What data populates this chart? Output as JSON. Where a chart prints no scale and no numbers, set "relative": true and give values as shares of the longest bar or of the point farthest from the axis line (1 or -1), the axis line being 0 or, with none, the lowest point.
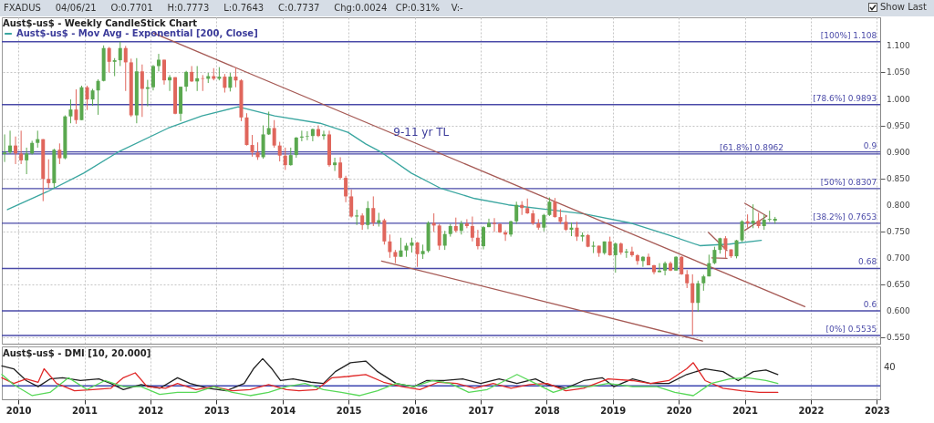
{
  "chart_data": [
    {
      "type": "candlestick",
      "title": "Aust$-us$ - Weekly CandleStick Chart",
      "subtitle": "FXADUS     04/06/21     O:0.7701     H:0.7773     L:0.7643     C:0.7737     Chg:0.0024   CP:0.31%    V:-",
      "x": [
        2009.792,
        2009.875,
        2009.958,
        2010.042,
        2010.125,
        2010.208,
        2010.292,
        2010.375,
        2010.458,
        2010.542,
        2010.625,
        2010.708,
        2010.792,
        2010.875,
        2010.958,
        2011.042,
        2011.125,
        2011.208,
        2011.292,
        2011.375,
        2011.458,
        2011.542,
        2011.625,
        2011.708,
        2011.792,
        2011.875,
        2011.958,
        2012.042,
        2012.125,
        2012.208,
        2012.292,
        2012.375,
        2012.458,
        2012.542,
        2012.625,
        2012.708,
        2012.792,
        2012.875,
        2012.958,
        2013.042,
        2013.125,
        2013.208,
        2013.292,
        2013.375,
        2013.458,
        2013.542,
        2013.625,
        2013.708,
        2013.792,
        2013.875,
        2013.958,
        2014.042,
        2014.125,
        2014.208,
        2014.292,
        2014.375,
        2014.458,
        2014.542,
        2014.625,
        2014.708,
        2014.792,
        2014.875,
        2014.958,
        2015.042,
        2015.125,
        2015.208,
        2015.292,
        2015.375,
        2015.458,
        2015.542,
        2015.625,
        2015.708,
        2015.792,
        2015.875,
        2015.958,
        2016.042,
        2016.125,
        2016.208,
        2016.292,
        2016.375,
        2016.458,
        2016.542,
        2016.625,
        2016.708,
        2016.792,
        2016.875,
        2016.958,
        2017.042,
        2017.125,
        2017.208,
        2017.292,
        2017.375,
        2017.458,
        2017.542,
        2017.625,
        2017.708,
        2017.792,
        2017.875,
        2017.958,
        2018.042,
        2018.125,
        2018.208,
        2018.292,
        2018.375,
        2018.458,
        2018.542,
        2018.625,
        2018.708,
        2018.792,
        2018.875,
        2018.958,
        2019.042,
        2019.125,
        2019.208,
        2019.292,
        2019.375,
        2019.458,
        2019.542,
        2019.625,
        2019.708,
        2019.792,
        2019.875,
        2019.958,
        2020.042,
        2020.125,
        2020.208,
        2020.292,
        2020.375,
        2020.458,
        2020.542,
        2020.625,
        2020.708,
        2020.792,
        2020.875,
        2020.958,
        2021.042,
        2021.125,
        2021.208,
        2021.292,
        2021.375,
        2021.458
      ],
      "ohlc": [
        [
          0.896,
          0.933,
          0.881,
          0.899
        ],
        [
          0.899,
          0.94,
          0.896,
          0.912
        ],
        [
          0.912,
          0.929,
          0.877,
          0.897
        ],
        [
          0.897,
          0.94,
          0.877,
          0.884
        ],
        [
          0.884,
          0.908,
          0.858,
          0.897
        ],
        [
          0.897,
          0.921,
          0.895,
          0.917
        ],
        [
          0.917,
          0.94,
          0.908,
          0.924
        ],
        [
          0.924,
          0.924,
          0.807,
          0.849
        ],
        [
          0.849,
          0.886,
          0.832,
          0.841
        ],
        [
          0.841,
          0.906,
          0.832,
          0.904
        ],
        [
          0.904,
          0.916,
          0.877,
          0.888
        ],
        [
          0.888,
          0.969,
          0.886,
          0.967
        ],
        [
          0.967,
          0.999,
          0.954,
          0.98
        ],
        [
          0.98,
          1.018,
          0.953,
          0.96
        ],
        [
          0.96,
          1.025,
          0.96,
          1.022
        ],
        [
          1.022,
          1.025,
          0.979,
          0.999
        ],
        [
          0.999,
          1.019,
          0.987,
          1.016
        ],
        [
          1.016,
          1.037,
          0.97,
          1.034
        ],
        [
          1.034,
          1.101,
          1.033,
          1.096
        ],
        [
          1.096,
          1.098,
          1.05,
          1.07
        ],
        [
          1.07,
          1.077,
          1.043,
          1.073
        ],
        [
          1.073,
          1.108,
          1.062,
          1.096
        ],
        [
          1.096,
          1.1,
          1.015,
          1.069
        ],
        [
          1.069,
          1.076,
          0.966,
          0.969
        ],
        [
          0.969,
          1.077,
          0.954,
          1.052
        ],
        [
          1.052,
          1.065,
          0.966,
          1.019
        ],
        [
          1.019,
          1.036,
          0.986,
          1.022
        ],
        [
          1.022,
          1.064,
          1.016,
          1.062
        ],
        [
          1.062,
          1.085,
          1.052,
          1.074
        ],
        [
          1.074,
          1.074,
          1.027,
          1.035
        ],
        [
          1.035,
          1.045,
          1.015,
          1.041
        ],
        [
          1.041,
          1.041,
          0.971,
          0.972
        ],
        [
          0.972,
          1.023,
          0.958,
          1.023
        ],
        [
          1.023,
          1.053,
          1.014,
          1.051
        ],
        [
          1.051,
          1.062,
          1.032,
          1.033
        ],
        [
          1.033,
          1.062,
          1.015,
          1.039
        ],
        [
          1.039,
          1.045,
          1.015,
          1.038
        ],
        [
          1.038,
          1.049,
          1.03,
          1.043
        ],
        [
          1.043,
          1.058,
          1.035,
          1.038
        ],
        [
          1.038,
          1.06,
          1.035,
          1.042
        ],
        [
          1.042,
          1.047,
          1.012,
          1.021
        ],
        [
          1.021,
          1.049,
          1.014,
          1.042
        ],
        [
          1.042,
          1.059,
          1.022,
          1.035
        ],
        [
          1.035,
          1.037,
          0.958,
          0.965
        ],
        [
          0.965,
          0.973,
          0.912,
          0.913
        ],
        [
          0.913,
          0.932,
          0.891,
          0.899
        ],
        [
          0.899,
          0.918,
          0.885,
          0.89
        ],
        [
          0.89,
          0.95,
          0.887,
          0.933
        ],
        [
          0.933,
          0.976,
          0.932,
          0.945
        ],
        [
          0.945,
          0.96,
          0.908,
          0.912
        ],
        [
          0.912,
          0.919,
          0.882,
          0.893
        ],
        [
          0.893,
          0.908,
          0.866,
          0.875
        ],
        [
          0.875,
          0.908,
          0.874,
          0.894
        ],
        [
          0.894,
          0.928,
          0.889,
          0.927
        ],
        [
          0.927,
          0.94,
          0.92,
          0.929
        ],
        [
          0.929,
          0.939,
          0.922,
          0.93
        ],
        [
          0.93,
          0.944,
          0.92,
          0.943
        ],
        [
          0.943,
          0.95,
          0.928,
          0.93
        ],
        [
          0.93,
          0.94,
          0.923,
          0.933
        ],
        [
          0.933,
          0.94,
          0.872,
          0.875
        ],
        [
          0.875,
          0.889,
          0.864,
          0.88
        ],
        [
          0.88,
          0.89,
          0.848,
          0.851
        ],
        [
          0.851,
          0.855,
          0.805,
          0.816
        ],
        [
          0.816,
          0.829,
          0.776,
          0.778
        ],
        [
          0.778,
          0.791,
          0.762,
          0.78
        ],
        [
          0.78,
          0.784,
          0.753,
          0.762
        ],
        [
          0.762,
          0.807,
          0.754,
          0.794
        ],
        [
          0.794,
          0.816,
          0.76,
          0.766
        ],
        [
          0.766,
          0.785,
          0.759,
          0.771
        ],
        [
          0.771,
          0.774,
          0.725,
          0.731
        ],
        [
          0.731,
          0.744,
          0.7,
          0.711
        ],
        [
          0.711,
          0.715,
          0.69,
          0.702
        ],
        [
          0.702,
          0.738,
          0.702,
          0.714
        ],
        [
          0.714,
          0.728,
          0.702,
          0.723
        ],
        [
          0.723,
          0.738,
          0.71,
          0.729
        ],
        [
          0.729,
          0.73,
          0.683,
          0.707
        ],
        [
          0.707,
          0.725,
          0.698,
          0.713
        ],
        [
          0.713,
          0.769,
          0.71,
          0.766
        ],
        [
          0.766,
          0.784,
          0.749,
          0.761
        ],
        [
          0.761,
          0.764,
          0.715,
          0.723
        ],
        [
          0.723,
          0.751,
          0.715,
          0.745
        ],
        [
          0.745,
          0.764,
          0.74,
          0.76
        ],
        [
          0.76,
          0.776,
          0.748,
          0.751
        ],
        [
          0.751,
          0.77,
          0.744,
          0.765
        ],
        [
          0.765,
          0.773,
          0.756,
          0.76
        ],
        [
          0.76,
          0.778,
          0.731,
          0.738
        ],
        [
          0.738,
          0.753,
          0.716,
          0.722
        ],
        [
          0.722,
          0.76,
          0.716,
          0.758
        ],
        [
          0.758,
          0.774,
          0.758,
          0.766
        ],
        [
          0.766,
          0.775,
          0.749,
          0.764
        ],
        [
          0.764,
          0.765,
          0.747,
          0.748
        ],
        [
          0.748,
          0.752,
          0.732,
          0.744
        ],
        [
          0.744,
          0.77,
          0.74,
          0.769
        ],
        [
          0.769,
          0.806,
          0.764,
          0.8
        ],
        [
          0.8,
          0.807,
          0.781,
          0.794
        ],
        [
          0.794,
          0.812,
          0.783,
          0.784
        ],
        [
          0.784,
          0.79,
          0.762,
          0.765
        ],
        [
          0.765,
          0.773,
          0.753,
          0.757
        ],
        [
          0.757,
          0.783,
          0.75,
          0.781
        ],
        [
          0.781,
          0.814,
          0.779,
          0.806
        ],
        [
          0.806,
          0.813,
          0.776,
          0.777
        ],
        [
          0.777,
          0.792,
          0.764,
          0.768
        ],
        [
          0.768,
          0.781,
          0.751,
          0.753
        ],
        [
          0.753,
          0.767,
          0.741,
          0.757
        ],
        [
          0.757,
          0.768,
          0.732,
          0.74
        ],
        [
          0.74,
          0.748,
          0.731,
          0.743
        ],
        [
          0.743,
          0.745,
          0.72,
          0.721
        ],
        [
          0.721,
          0.731,
          0.709,
          0.723
        ],
        [
          0.723,
          0.723,
          0.702,
          0.709
        ],
        [
          0.709,
          0.731,
          0.706,
          0.731
        ],
        [
          0.731,
          0.74,
          0.704,
          0.705
        ],
        [
          0.705,
          0.729,
          0.672,
          0.727
        ],
        [
          0.727,
          0.729,
          0.706,
          0.71
        ],
        [
          0.71,
          0.717,
          0.7,
          0.712
        ],
        [
          0.712,
          0.721,
          0.702,
          0.705
        ],
        [
          0.705,
          0.707,
          0.687,
          0.694
        ],
        [
          0.694,
          0.703,
          0.683,
          0.702
        ],
        [
          0.702,
          0.708,
          0.686,
          0.686
        ],
        [
          0.686,
          0.687,
          0.669,
          0.673
        ],
        [
          0.673,
          0.69,
          0.673,
          0.676
        ],
        [
          0.676,
          0.693,
          0.667,
          0.69
        ],
        [
          0.69,
          0.693,
          0.675,
          0.676
        ],
        [
          0.676,
          0.703,
          0.676,
          0.702
        ],
        [
          0.702,
          0.703,
          0.668,
          0.669
        ],
        [
          0.669,
          0.677,
          0.643,
          0.652
        ],
        [
          0.652,
          0.669,
          0.5535,
          0.615
        ],
        [
          0.615,
          0.657,
          0.598,
          0.652
        ],
        [
          0.652,
          0.668,
          0.638,
          0.665
        ],
        [
          0.665,
          0.706,
          0.665,
          0.69
        ],
        [
          0.69,
          0.721,
          0.688,
          0.715
        ],
        [
          0.715,
          0.738,
          0.708,
          0.737
        ],
        [
          0.737,
          0.741,
          0.7,
          0.716
        ],
        [
          0.716,
          0.716,
          0.7,
          0.703
        ],
        [
          0.703,
          0.734,
          0.699,
          0.733
        ],
        [
          0.733,
          0.771,
          0.73,
          0.769
        ],
        [
          0.769,
          0.782,
          0.757,
          0.765
        ],
        [
          0.765,
          0.801,
          0.756,
          0.77
        ],
        [
          0.77,
          0.785,
          0.756,
          0.76
        ],
        [
          0.76,
          0.782,
          0.753,
          0.772
        ],
        [
          0.772,
          0.789,
          0.768,
          0.7735
        ],
        [
          0.7701,
          0.7773,
          0.7643,
          0.7737
        ]
      ],
      "colors": [
        "#5aa84f",
        "#5aa84f",
        "#e0665c",
        "#e0665c",
        "#5aa84f",
        "#5aa84f",
        "#5aa84f",
        "#e0665c",
        "#e0665c",
        "#5aa84f",
        "#e0665c",
        "#5aa84f",
        "#5aa84f",
        "#e0665c",
        "#5aa84f",
        "#e0665c",
        "#5aa84f",
        "#5aa84f",
        "#5aa84f",
        "#e0665c",
        "#5aa84f",
        "#5aa84f",
        "#e0665c",
        "#e0665c",
        "#5aa84f",
        "#e0665c",
        "#5aa84f",
        "#5aa84f",
        "#5aa84f",
        "#e0665c",
        "#5aa84f",
        "#e0665c",
        "#5aa84f",
        "#5aa84f",
        "#e0665c",
        "#5aa84f",
        "#e0665c",
        "#5aa84f",
        "#e0665c",
        "#5aa84f",
        "#e0665c",
        "#5aa84f",
        "#e0665c",
        "#e0665c",
        "#e0665c",
        "#e0665c",
        "#e0665c",
        "#5aa84f",
        "#5aa84f",
        "#e0665c",
        "#e0665c",
        "#e0665c",
        "#5aa84f",
        "#5aa84f",
        "#5aa84f",
        "#5aa84f",
        "#5aa84f",
        "#e0665c",
        "#5aa84f",
        "#e0665c",
        "#5aa84f",
        "#e0665c",
        "#e0665c",
        "#e0665c",
        "#5aa84f",
        "#e0665c",
        "#5aa84f",
        "#e0665c",
        "#5aa84f",
        "#e0665c",
        "#e0665c",
        "#e0665c",
        "#5aa84f",
        "#5aa84f",
        "#5aa84f",
        "#e0665c",
        "#5aa84f",
        "#5aa84f",
        "#e0665c",
        "#e0665c",
        "#5aa84f",
        "#5aa84f",
        "#e0665c",
        "#5aa84f",
        "#e0665c",
        "#e0665c",
        "#e0665c",
        "#5aa84f",
        "#5aa84f",
        "#e0665c",
        "#e0665c",
        "#e0665c",
        "#5aa84f",
        "#5aa84f",
        "#e0665c",
        "#e0665c",
        "#e0665c",
        "#e0665c",
        "#5aa84f",
        "#5aa84f",
        "#e0665c",
        "#e0665c",
        "#e0665c",
        "#5aa84f",
        "#e0665c",
        "#5aa84f",
        "#e0665c",
        "#5aa84f",
        "#e0665c",
        "#5aa84f",
        "#e0665c",
        "#5aa84f",
        "#e0665c",
        "#5aa84f",
        "#e0665c",
        "#e0665c",
        "#5aa84f",
        "#e0665c",
        "#e0665c",
        "#5aa84f",
        "#5aa84f",
        "#e0665c",
        "#5aa84f",
        "#e0665c",
        "#e0665c",
        "#e0665c",
        "#5aa84f",
        "#5aa84f",
        "#5aa84f",
        "#5aa84f",
        "#5aa84f",
        "#e0665c",
        "#e0665c",
        "#5aa84f",
        "#5aa84f",
        "#e0665c",
        "#5aa84f",
        "#e0665c",
        "#5aa84f",
        "#5aa84f",
        "#5aa84f"
      ],
      "series": [
        {
          "type": "line",
          "name": "Aust$-us$ - Mov Avg - Exponential [200, Close]",
          "color": "#3aa6a0",
          "x": [
            2009.835,
            2010.44,
            2010.99,
            2011.5,
            2012.27,
            2012.78,
            2013.33,
            2013.88,
            2014.57,
            2014.99,
            2015.26,
            2015.5,
            2015.95,
            2016.4,
            2016.91,
            2017.42,
            2018.02,
            2018.57,
            2019.26,
            2019.85,
            2020.32,
            2020.77,
            2021.25
          ],
          "values": [
            0.791,
            0.825,
            0.86,
            0.899,
            0.945,
            0.968,
            0.985,
            0.968,
            0.954,
            0.937,
            0.915,
            0.899,
            0.86,
            0.831,
            0.812,
            0.8,
            0.791,
            0.783,
            0.766,
            0.743,
            0.723,
            0.726,
            0.733
          ]
        },
        {
          "type": "line",
          "color": "#a65a55",
          "x": [
            2012.05,
            2021.91
          ],
          "values": [
            1.124,
            0.608
          ]
        },
        {
          "type": "line",
          "color": "#a65a55",
          "x": [
            2015.5,
            2020.36
          ],
          "values": [
            0.694,
            0.543
          ]
        },
        {
          "type": "line",
          "color": "#a65a55",
          "x": [
            2020.45,
            2020.73
          ],
          "values": [
            0.748,
            0.714
          ]
        },
        {
          "type": "line",
          "color": "#a65a55",
          "x": [
            2020.5,
            2020.73
          ],
          "values": [
            0.7,
            0.699
          ]
        },
        {
          "type": "line",
          "color": "#a65a55",
          "x": [
            2021.0,
            2021.333
          ],
          "values": [
            0.803,
            0.779
          ]
        },
        {
          "type": "line",
          "color": "#a65a55",
          "x": [
            2021.0,
            2021.333
          ],
          "values": [
            0.752,
            0.779
          ]
        }
      ],
      "ref_lines": [
        {
          "axis": "y",
          "value": 1.108,
          "label": "[100%] 1.108",
          "color": "#4a4aa8"
        },
        {
          "axis": "y",
          "value": 0.9893,
          "label": "[78.6%] 0.9893",
          "color": "#4a4aa8"
        },
        {
          "axis": "y",
          "value": 0.8962,
          "label": "[61.8%] 0.8962",
          "color": "#4a4aa8"
        },
        {
          "axis": "y",
          "value": 0.8307,
          "label": "[50%] 0.8307",
          "color": "#4a4aa8"
        },
        {
          "axis": "y",
          "value": 0.7653,
          "label": "[38.2%] 0.7653",
          "color": "#4a4aa8"
        },
        {
          "axis": "y",
          "value": 0.5535,
          "label": "[0%] 0.5535",
          "color": "#4a4aa8"
        },
        {
          "axis": "y",
          "value": 0.9,
          "label": "0.9",
          "color": "#4a4aa8"
        },
        {
          "axis": "y",
          "value": 0.68,
          "label": "0.68",
          "color": "#4a4aa8"
        },
        {
          "axis": "y",
          "value": 0.6,
          "label": "0.6",
          "color": "#4a4aa8"
        }
      ],
      "annotations": [
        {
          "text": "9-11 yr TL",
          "x": 2016.1,
          "y": 0.912
        },
        "Show Last"
      ],
      "xlim": [
        2009.75,
        2023.05
      ],
      "xticks": [
        2010,
        2011,
        2012,
        2013,
        2014,
        2015,
        2016,
        2017,
        2018,
        2019,
        2020,
        2021,
        2022,
        2023
      ],
      "ylim": [
        0.538,
        1.154
      ],
      "yticks": [
        {
          "value": 0.55,
          "label": "0.550"
        },
        {
          "value": 0.6,
          "label": "0.600"
        },
        {
          "value": 0.65,
          "label": "0.650"
        },
        {
          "value": 0.7,
          "label": "0.700"
        },
        {
          "value": 0.75,
          "label": "0.750"
        },
        {
          "value": 0.8,
          "label": "0.800"
        },
        {
          "value": 0.85,
          "label": "0.850"
        },
        {
          "value": 0.9,
          "label": "0.900"
        },
        {
          "value": 0.95,
          "label": "0.950"
        },
        {
          "value": 1.0,
          "label": "1.000"
        },
        {
          "value": 1.05,
          "label": "1.050"
        },
        {
          "value": 1.1,
          "label": "1.100"
        }
      ],
      "grid": true,
      "legend": "top left",
      "tick_labels": "y"
    },
    {
      "type": "line",
      "title": "Aust$-us$ - DMI [10, 20.000]",
      "relative": true,
      "series": [
        {
          "color": "#202020",
          "x": [
            2009.75,
            2009.93,
            2010.12,
            2010.3,
            2010.48,
            2010.67,
            2010.94,
            2011.22,
            2011.4,
            2011.59,
            2011.86,
            2012.14,
            2012.41,
            2012.6,
            2012.87,
            2013.15,
            2013.42,
            2013.56,
            2013.7,
            2013.84,
            2013.97,
            2014.16,
            2014.43,
            2014.62,
            2014.8,
            2015.03,
            2015.26,
            2015.44,
            2015.72,
            2015.99,
            2016.18,
            2016.45,
            2016.73,
            2017.0,
            2017.28,
            2017.55,
            2017.83,
            2018.01,
            2018.29,
            2018.56,
            2018.84,
            2019.02,
            2019.3,
            2019.57,
            2019.85,
            2020.12,
            2020.4,
            2020.67,
            2020.9,
            2021.13,
            2021.32,
            2021.5
          ],
          "values": [
            0.82,
            0.75,
            0.46,
            0.31,
            0.5,
            0.53,
            0.46,
            0.5,
            0.39,
            0.24,
            0.36,
            0.27,
            0.53,
            0.39,
            0.27,
            0.21,
            0.39,
            0.75,
            1.0,
            0.75,
            0.46,
            0.5,
            0.42,
            0.39,
            0.68,
            0.9,
            0.94,
            0.68,
            0.39,
            0.31,
            0.46,
            0.46,
            0.5,
            0.39,
            0.5,
            0.39,
            0.5,
            0.36,
            0.27,
            0.46,
            0.53,
            0.31,
            0.5,
            0.39,
            0.39,
            0.61,
            0.75,
            0.68,
            0.46,
            0.68,
            0.72,
            0.61
          ]
        },
        {
          "color": "#e02828",
          "x": [
            2009.75,
            2009.93,
            2010.12,
            2010.3,
            2010.39,
            2010.58,
            2010.85,
            2011.13,
            2011.4,
            2011.59,
            2011.77,
            2011.95,
            2012.23,
            2012.41,
            2012.69,
            2012.96,
            2013.24,
            2013.51,
            2013.79,
            2014.06,
            2014.25,
            2014.52,
            2014.75,
            2014.98,
            2015.26,
            2015.53,
            2015.81,
            2016.08,
            2016.36,
            2016.64,
            2016.91,
            2017.19,
            2017.46,
            2017.74,
            2018.01,
            2018.29,
            2018.56,
            2018.93,
            2019.3,
            2019.57,
            2019.85,
            2020.12,
            2020.22,
            2020.4,
            2020.67,
            2020.95,
            2021.22,
            2021.5
          ],
          "values": [
            0.53,
            0.39,
            0.5,
            0.42,
            0.75,
            0.39,
            0.21,
            0.24,
            0.27,
            0.53,
            0.65,
            0.31,
            0.27,
            0.39,
            0.24,
            0.31,
            0.21,
            0.24,
            0.36,
            0.24,
            0.21,
            0.24,
            0.53,
            0.56,
            0.61,
            0.42,
            0.31,
            0.24,
            0.42,
            0.39,
            0.27,
            0.39,
            0.27,
            0.36,
            0.39,
            0.21,
            0.27,
            0.5,
            0.46,
            0.39,
            0.46,
            0.75,
            0.9,
            0.46,
            0.27,
            0.21,
            0.17,
            0.17
          ]
        },
        {
          "color": "#58d858",
          "x": [
            2009.75,
            2009.93,
            2010.21,
            2010.48,
            2010.76,
            2011.04,
            2011.31,
            2011.59,
            2011.86,
            2012.14,
            2012.41,
            2012.69,
            2012.96,
            2013.24,
            2013.51,
            2013.79,
            2014.06,
            2014.34,
            2014.62,
            2014.89,
            2015.17,
            2015.44,
            2015.72,
            2015.99,
            2016.27,
            2016.54,
            2016.82,
            2017.1,
            2017.37,
            2017.55,
            2017.83,
            2018.1,
            2018.38,
            2018.65,
            2018.93,
            2019.3,
            2019.67,
            2019.94,
            2020.22,
            2020.49,
            2020.77,
            2021.04,
            2021.32,
            2021.5
          ],
          "values": [
            0.61,
            0.36,
            0.09,
            0.17,
            0.53,
            0.24,
            0.46,
            0.31,
            0.31,
            0.12,
            0.17,
            0.17,
            0.31,
            0.17,
            0.09,
            0.17,
            0.31,
            0.39,
            0.24,
            0.17,
            0.09,
            0.21,
            0.39,
            0.31,
            0.46,
            0.39,
            0.17,
            0.24,
            0.46,
            0.61,
            0.39,
            0.17,
            0.31,
            0.31,
            0.39,
            0.31,
            0.31,
            0.17,
            0.09,
            0.39,
            0.5,
            0.53,
            0.46,
            0.39
          ]
        }
      ],
      "ref_lines": [
        {
          "axis": "y",
          "value": 0.33,
          "color": "#3b44b0"
        }
      ],
      "annotations": [
        "40"
      ],
      "xlim": [
        2009.75,
        2023.05
      ],
      "xticks": [
        2010,
        2011,
        2012,
        2013,
        2014,
        2015,
        2016,
        2017,
        2018,
        2019,
        2020,
        2021,
        2022,
        2023
      ],
      "grid": "x",
      "tick_labels": "x"
    }
  ]
}
